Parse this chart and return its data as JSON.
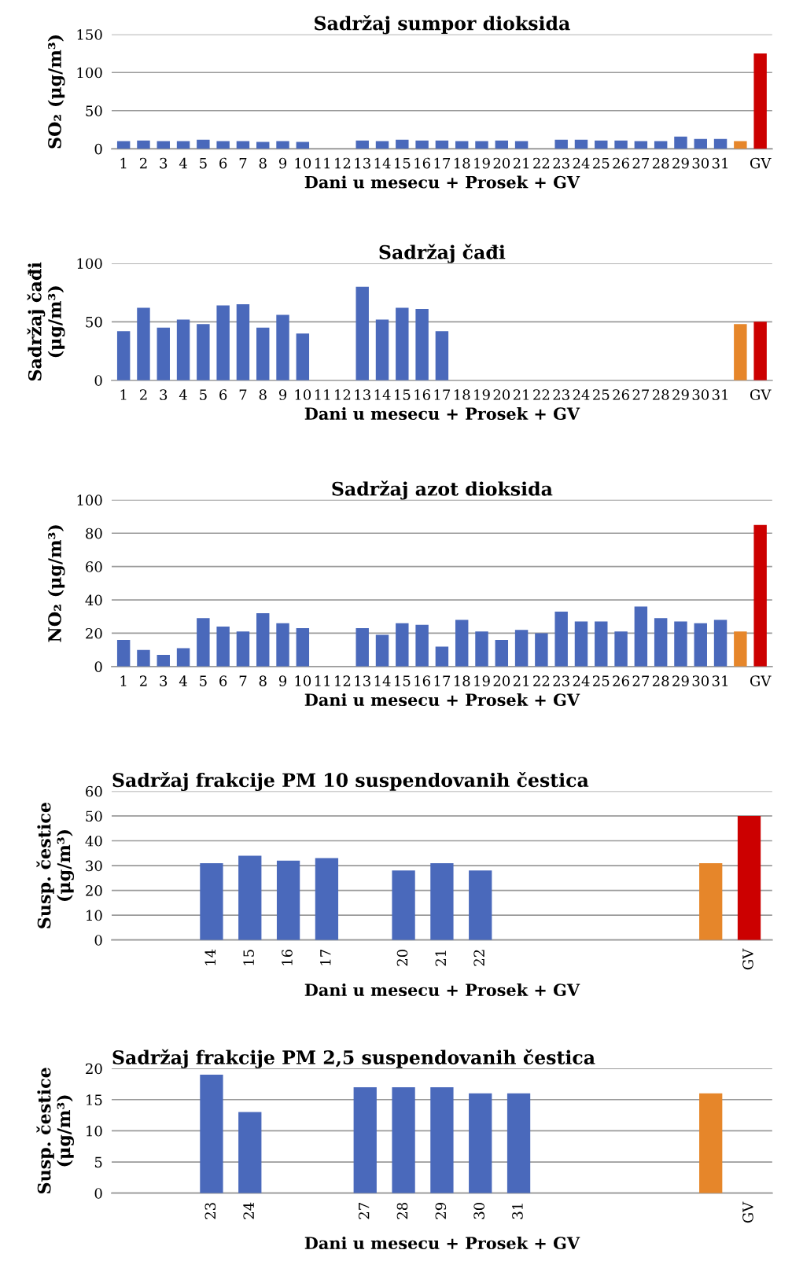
{
  "chart_data": [
    {
      "type": "bar",
      "title": "Sadržaj sumpor dioksida",
      "xlabel": "Dani u mesecu + Prosek + GV",
      "ylabel": "SO₂ (μg/m³)",
      "categories": [
        "1",
        "2",
        "3",
        "4",
        "5",
        "6",
        "7",
        "8",
        "9",
        "10",
        "11",
        "12",
        "13",
        "14",
        "15",
        "16",
        "17",
        "18",
        "19",
        "20",
        "21",
        "22",
        "23",
        "24",
        "25",
        "26",
        "27",
        "28",
        "29",
        "30",
        "31",
        null,
        "GV"
      ],
      "values": [
        10,
        11,
        10,
        10,
        12,
        10,
        10,
        9,
        10,
        9,
        null,
        null,
        11,
        10,
        12,
        11,
        11,
        10,
        10,
        11,
        10,
        null,
        12,
        12,
        11,
        11,
        10,
        10,
        16,
        13,
        13,
        10,
        125
      ],
      "colors": [
        "#4a69bb",
        "#4a69bb",
        "#4a69bb",
        "#4a69bb",
        "#4a69bb",
        "#4a69bb",
        "#4a69bb",
        "#4a69bb",
        "#4a69bb",
        "#4a69bb",
        "#4a69bb",
        "#4a69bb",
        "#4a69bb",
        "#4a69bb",
        "#4a69bb",
        "#4a69bb",
        "#4a69bb",
        "#4a69bb",
        "#4a69bb",
        "#4a69bb",
        "#4a69bb",
        "#4a69bb",
        "#4a69bb",
        "#4a69bb",
        "#4a69bb",
        "#4a69bb",
        "#4a69bb",
        "#4a69bb",
        "#4a69bb",
        "#4a69bb",
        "#4a69bb",
        "#e6862a",
        "#cc0000"
      ],
      "ylim": [
        0,
        150
      ],
      "yticks": [
        0,
        50,
        100,
        150
      ],
      "grid": "y"
    },
    {
      "type": "bar",
      "title": "Sadržaj čađi",
      "xlabel": "Dani u mesecu + Prosek + GV",
      "ylabel": "Sadržaj čađi\n(μg/m³)",
      "categories": [
        "1",
        "2",
        "3",
        "4",
        "5",
        "6",
        "7",
        "8",
        "9",
        "10",
        "11",
        "12",
        "13",
        "14",
        "15",
        "16",
        "17",
        "18",
        "19",
        "20",
        "21",
        "22",
        "23",
        "24",
        "25",
        "26",
        "27",
        "28",
        "29",
        "30",
        "31",
        null,
        "GV"
      ],
      "values": [
        42,
        62,
        45,
        52,
        48,
        64,
        65,
        45,
        56,
        40,
        null,
        null,
        80,
        52,
        62,
        61,
        42,
        null,
        null,
        null,
        null,
        null,
        null,
        null,
        null,
        null,
        null,
        null,
        null,
        null,
        null,
        48,
        50
      ],
      "colors": [
        "#4a69bb",
        "#4a69bb",
        "#4a69bb",
        "#4a69bb",
        "#4a69bb",
        "#4a69bb",
        "#4a69bb",
        "#4a69bb",
        "#4a69bb",
        "#4a69bb",
        "#4a69bb",
        "#4a69bb",
        "#4a69bb",
        "#4a69bb",
        "#4a69bb",
        "#4a69bb",
        "#4a69bb",
        "#4a69bb",
        "#4a69bb",
        "#4a69bb",
        "#4a69bb",
        "#4a69bb",
        "#4a69bb",
        "#4a69bb",
        "#4a69bb",
        "#4a69bb",
        "#4a69bb",
        "#4a69bb",
        "#4a69bb",
        "#4a69bb",
        "#4a69bb",
        "#e6862a",
        "#cc0000"
      ],
      "ylim": [
        0,
        100
      ],
      "yticks": [
        0,
        50,
        100
      ],
      "grid": "y"
    },
    {
      "type": "bar",
      "title": "Sadržaj azot dioksida",
      "xlabel": "Dani u mesecu + Prosek + GV",
      "ylabel": "NO₂ (μg/m³)",
      "categories": [
        "1",
        "2",
        "3",
        "4",
        "5",
        "6",
        "7",
        "8",
        "9",
        "10",
        "11",
        "12",
        "13",
        "14",
        "15",
        "16",
        "17",
        "18",
        "19",
        "20",
        "21",
        "22",
        "23",
        "24",
        "25",
        "26",
        "27",
        "28",
        "29",
        "30",
        "31",
        null,
        "GV"
      ],
      "values": [
        16,
        10,
        7,
        11,
        29,
        24,
        21,
        32,
        26,
        23,
        null,
        null,
        23,
        19,
        26,
        25,
        12,
        28,
        21,
        16,
        22,
        20,
        33,
        27,
        27,
        21,
        36,
        29,
        27,
        26,
        28,
        21,
        85
      ],
      "colors": [
        "#4a69bb",
        "#4a69bb",
        "#4a69bb",
        "#4a69bb",
        "#4a69bb",
        "#4a69bb",
        "#4a69bb",
        "#4a69bb",
        "#4a69bb",
        "#4a69bb",
        "#4a69bb",
        "#4a69bb",
        "#4a69bb",
        "#4a69bb",
        "#4a69bb",
        "#4a69bb",
        "#4a69bb",
        "#4a69bb",
        "#4a69bb",
        "#4a69bb",
        "#4a69bb",
        "#4a69bb",
        "#4a69bb",
        "#4a69bb",
        "#4a69bb",
        "#4a69bb",
        "#4a69bb",
        "#4a69bb",
        "#4a69bb",
        "#4a69bb",
        "#4a69bb",
        "#e6862a",
        "#cc0000"
      ],
      "ylim": [
        0,
        100
      ],
      "yticks": [
        0,
        20,
        40,
        60,
        80,
        100
      ],
      "grid": "y"
    },
    {
      "type": "bar",
      "title": "Sadržaj frakcije PM 10 suspendovanih čestica",
      "xlabel": "Dani u mesecu + Prosek + GV",
      "ylabel": "Susp. čestice\n(μg/m³)",
      "categories": [
        null,
        null,
        "14",
        "15",
        "16",
        "17",
        null,
        "20",
        "21",
        "22",
        null,
        null,
        null,
        null,
        null,
        null,
        "GV"
      ],
      "values": [
        null,
        null,
        31,
        34,
        32,
        33,
        null,
        28,
        31,
        28,
        null,
        null,
        null,
        null,
        null,
        31,
        50
      ],
      "colors": [
        "#4a69bb",
        "#4a69bb",
        "#4a69bb",
        "#4a69bb",
        "#4a69bb",
        "#4a69bb",
        "#4a69bb",
        "#4a69bb",
        "#4a69bb",
        "#4a69bb",
        "#4a69bb",
        "#4a69bb",
        "#4a69bb",
        "#4a69bb",
        "#4a69bb",
        "#e6862a",
        "#cc0000"
      ],
      "ylim": [
        0,
        60
      ],
      "yticks": [
        0,
        10,
        20,
        30,
        40,
        50,
        60
      ],
      "grid": "y"
    },
    {
      "type": "bar",
      "title": "Sadržaj frakcije PM 2,5 suspendovanih čestica",
      "xlabel": "Dani u mesecu + Prosek + GV",
      "ylabel": "Susp. čestice\n(μg/m³)",
      "categories": [
        null,
        null,
        "23",
        "24",
        null,
        null,
        "27",
        "28",
        "29",
        "30",
        "31",
        null,
        null,
        null,
        null,
        null,
        "GV"
      ],
      "values": [
        null,
        null,
        19,
        13,
        null,
        null,
        17,
        17,
        17,
        16,
        16,
        null,
        null,
        null,
        null,
        16,
        null
      ],
      "colors": [
        "#4a69bb",
        "#4a69bb",
        "#4a69bb",
        "#4a69bb",
        "#4a69bb",
        "#4a69bb",
        "#4a69bb",
        "#4a69bb",
        "#4a69bb",
        "#4a69bb",
        "#4a69bb",
        "#4a69bb",
        "#4a69bb",
        "#4a69bb",
        "#4a69bb",
        "#e6862a",
        "#cc0000"
      ],
      "ylim": [
        0,
        20
      ],
      "yticks": [
        0,
        5,
        10,
        15,
        20
      ],
      "grid": "y"
    }
  ]
}
